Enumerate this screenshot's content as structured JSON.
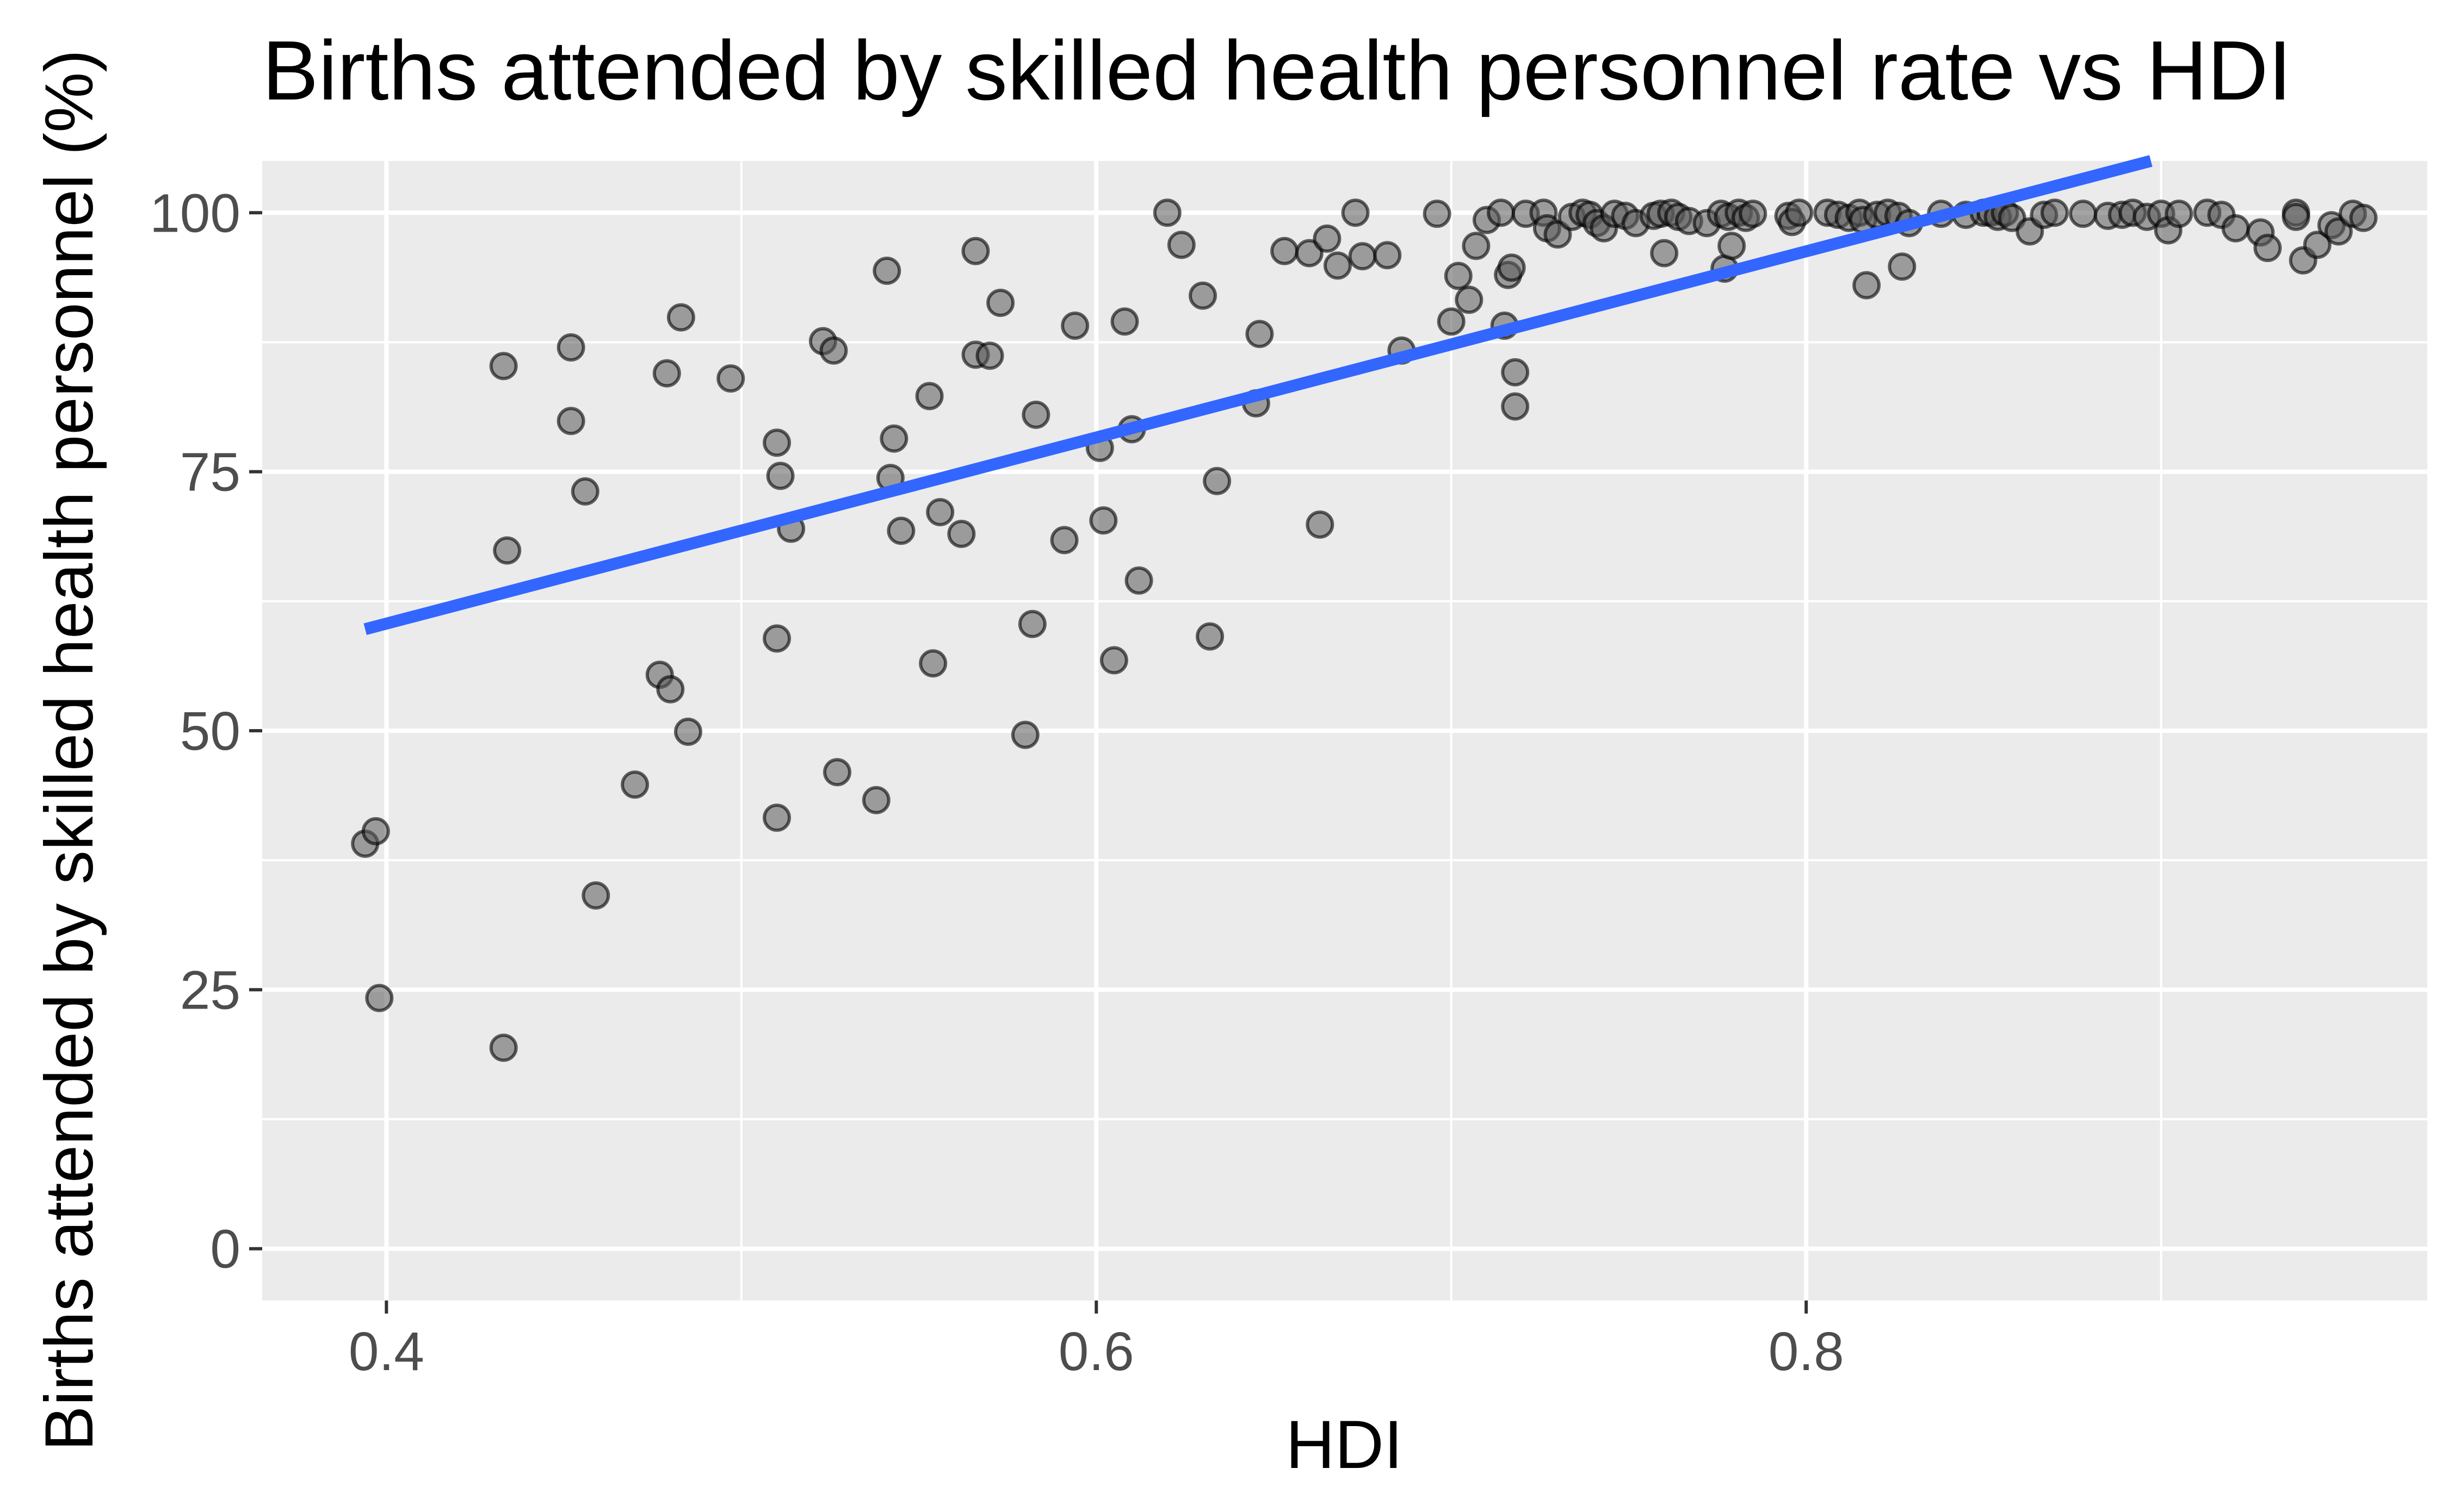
{
  "chart_data": {
    "type": "scatter",
    "title": "Births attended by skilled health personnel rate vs HDI",
    "xlabel": "HDI",
    "ylabel": "Births attended by skilled health personnel (%)",
    "xlim": [
      0.365,
      0.975
    ],
    "ylim": [
      -5,
      105
    ],
    "x_ticks": [
      0.4,
      0.6,
      0.8
    ],
    "x_tick_labels": [
      "0.4",
      "0.6",
      "0.8"
    ],
    "x_minor_ticks": [
      0.5,
      0.7,
      0.9
    ],
    "y_ticks": [
      0,
      25,
      50,
      75,
      100
    ],
    "y_tick_labels": [
      "0",
      "25",
      "50",
      "75",
      "100"
    ],
    "y_minor_ticks": [
      12.5,
      37.5,
      62.5,
      87.5
    ],
    "grid": true,
    "colors": {
      "panel": "#ebebeb",
      "grid": "#ffffff",
      "point_fill": "#595959",
      "point_stroke": "#000000",
      "trend": "#3366ff"
    },
    "trend_line": {
      "x": [
        0.394,
        0.955
      ],
      "y": [
        59.8,
        110.2
      ]
    },
    "series": [
      {
        "name": "countries",
        "points": [
          [
            0.394,
            39.1
          ],
          [
            0.397,
            40.3
          ],
          [
            0.398,
            24.2
          ],
          [
            0.433,
            85.2
          ],
          [
            0.433,
            19.4
          ],
          [
            0.434,
            67.4
          ],
          [
            0.452,
            87.0
          ],
          [
            0.452,
            79.9
          ],
          [
            0.456,
            73.1
          ],
          [
            0.459,
            34.1
          ],
          [
            0.47,
            44.8
          ],
          [
            0.477,
            55.4
          ],
          [
            0.479,
            84.5
          ],
          [
            0.48,
            54.0
          ],
          [
            0.483,
            89.9
          ],
          [
            0.485,
            49.9
          ],
          [
            0.497,
            84.0
          ],
          [
            0.51,
            77.8
          ],
          [
            0.51,
            58.9
          ],
          [
            0.511,
            74.6
          ],
          [
            0.51,
            41.6
          ],
          [
            0.514,
            69.5
          ],
          [
            0.523,
            87.6
          ],
          [
            0.526,
            86.7
          ],
          [
            0.527,
            46.0
          ],
          [
            0.538,
            43.3
          ],
          [
            0.541,
            94.4
          ],
          [
            0.542,
            74.4
          ],
          [
            0.543,
            78.2
          ],
          [
            0.545,
            69.3
          ],
          [
            0.553,
            82.3
          ],
          [
            0.554,
            56.5
          ],
          [
            0.556,
            71.1
          ],
          [
            0.562,
            69.0
          ],
          [
            0.566,
            96.3
          ],
          [
            0.566,
            86.3
          ],
          [
            0.57,
            86.2
          ],
          [
            0.573,
            91.3
          ],
          [
            0.58,
            49.6
          ],
          [
            0.582,
            60.3
          ],
          [
            0.583,
            80.5
          ],
          [
            0.591,
            68.4
          ],
          [
            0.594,
            89.1
          ],
          [
            0.601,
            77.3
          ],
          [
            0.602,
            70.3
          ],
          [
            0.605,
            56.8
          ],
          [
            0.608,
            89.5
          ],
          [
            0.61,
            79.1
          ],
          [
            0.612,
            64.5
          ],
          [
            0.62,
            100.0
          ],
          [
            0.624,
            96.9
          ],
          [
            0.63,
            92.0
          ],
          [
            0.632,
            59.1
          ],
          [
            0.634,
            74.1
          ],
          [
            0.645,
            81.6
          ],
          [
            0.646,
            88.3
          ],
          [
            0.653,
            96.3
          ],
          [
            0.66,
            96.1
          ],
          [
            0.663,
            69.9
          ],
          [
            0.665,
            97.5
          ],
          [
            0.668,
            94.9
          ],
          [
            0.673,
            100.0
          ],
          [
            0.675,
            95.8
          ],
          [
            0.682,
            95.9
          ],
          [
            0.686,
            86.7
          ],
          [
            0.696,
            99.9
          ],
          [
            0.7,
            89.5
          ],
          [
            0.702,
            93.9
          ],
          [
            0.705,
            91.6
          ],
          [
            0.707,
            96.8
          ],
          [
            0.71,
            99.3
          ],
          [
            0.714,
            100.0
          ],
          [
            0.715,
            89.1
          ],
          [
            0.716,
            94.0
          ],
          [
            0.717,
            94.7
          ],
          [
            0.718,
            84.6
          ],
          [
            0.718,
            81.3
          ],
          [
            0.721,
            99.9
          ],
          [
            0.726,
            100.0
          ],
          [
            0.727,
            98.5
          ],
          [
            0.73,
            97.9
          ],
          [
            0.734,
            99.6
          ],
          [
            0.737,
            100.0
          ],
          [
            0.739,
            99.8
          ],
          [
            0.741,
            99.0
          ],
          [
            0.743,
            98.5
          ],
          [
            0.746,
            99.9
          ],
          [
            0.749,
            99.7
          ],
          [
            0.752,
            99.0
          ],
          [
            0.757,
            99.7
          ],
          [
            0.759,
            99.9
          ],
          [
            0.76,
            96.1
          ],
          [
            0.762,
            100.0
          ],
          [
            0.764,
            99.6
          ],
          [
            0.767,
            99.2
          ],
          [
            0.772,
            99.0
          ],
          [
            0.776,
            99.9
          ],
          [
            0.777,
            94.6
          ],
          [
            0.778,
            99.6
          ],
          [
            0.779,
            96.8
          ],
          [
            0.781,
            100.0
          ],
          [
            0.783,
            99.5
          ],
          [
            0.785,
            99.9
          ],
          [
            0.795,
            99.7
          ],
          [
            0.796,
            99.1
          ],
          [
            0.798,
            100.0
          ],
          [
            0.806,
            100.0
          ],
          [
            0.809,
            99.8
          ],
          [
            0.812,
            99.5
          ],
          [
            0.815,
            100.0
          ],
          [
            0.816,
            99.3
          ],
          [
            0.817,
            93.0
          ],
          [
            0.82,
            99.8
          ],
          [
            0.823,
            100.0
          ],
          [
            0.826,
            99.7
          ],
          [
            0.827,
            94.8
          ],
          [
            0.829,
            99.0
          ],
          [
            0.838,
            99.9
          ],
          [
            0.845,
            99.8
          ],
          [
            0.85,
            100.0
          ],
          [
            0.852,
            100.0
          ],
          [
            0.854,
            99.6
          ],
          [
            0.856,
            100.0
          ],
          [
            0.858,
            99.5
          ],
          [
            0.863,
            98.2
          ],
          [
            0.867,
            99.8
          ],
          [
            0.87,
            100.0
          ],
          [
            0.878,
            99.9
          ],
          [
            0.885,
            99.7
          ],
          [
            0.889,
            99.8
          ],
          [
            0.892,
            100.0
          ],
          [
            0.896,
            99.6
          ],
          [
            0.9,
            99.9
          ],
          [
            0.902,
            98.3
          ],
          [
            0.905,
            99.9
          ],
          [
            0.913,
            100.0
          ],
          [
            0.917,
            99.8
          ],
          [
            0.921,
            98.5
          ],
          [
            0.928,
            98.1
          ],
          [
            0.93,
            96.6
          ],
          [
            0.938,
            100.0
          ],
          [
            0.938,
            99.6
          ],
          [
            0.94,
            95.4
          ],
          [
            0.944,
            96.9
          ],
          [
            0.948,
            98.8
          ],
          [
            0.95,
            98.2
          ],
          [
            0.954,
            99.9
          ],
          [
            0.957,
            99.5
          ]
        ]
      }
    ]
  }
}
